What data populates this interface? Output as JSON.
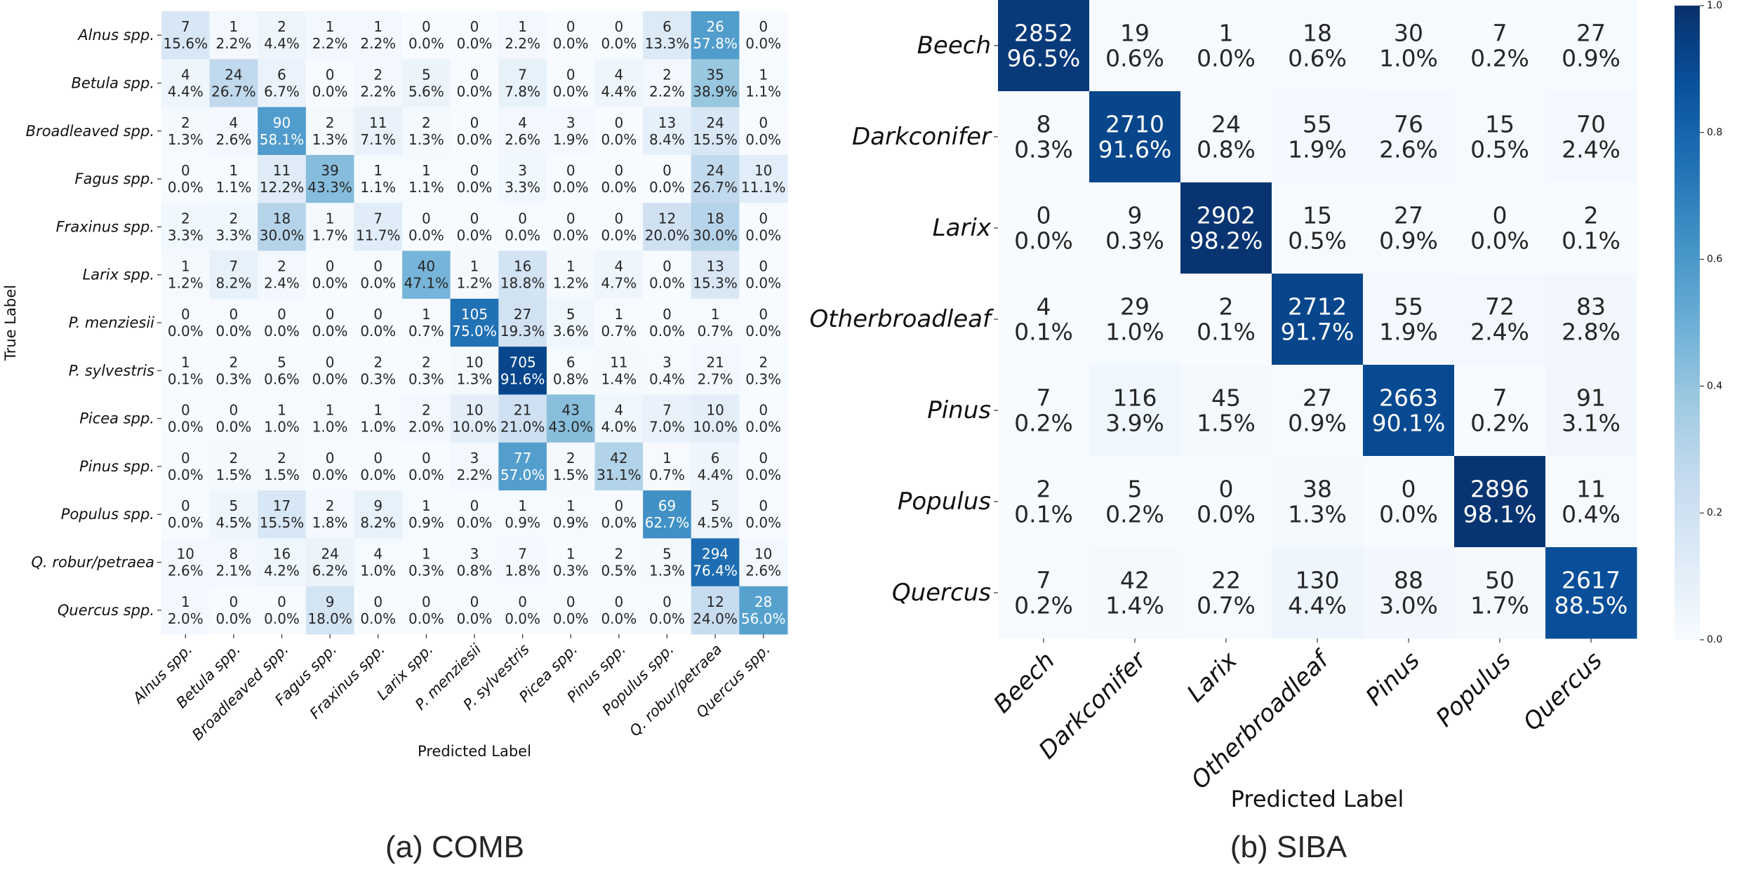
{
  "figure": {
    "caption_a": "(a) COMB",
    "caption_b": "(b) SIBA"
  },
  "colors": {
    "scale": [
      "#f7fbff",
      "#deebf7",
      "#c6dbef",
      "#9ecae1",
      "#6baed6",
      "#4292c6",
      "#2171b5",
      "#08519c",
      "#08306b"
    ],
    "text_dark": "#262626",
    "text_light": "#ffffff"
  },
  "chart_data": [
    {
      "type": "heatmap",
      "id": "comb",
      "title": "",
      "xlabel": "Predicted Label",
      "ylabel": "True Label",
      "classes": [
        "Alnus spp.",
        "Betula spp.",
        "Broadleaved spp.",
        "Fagus spp.",
        "Fraxinus spp.",
        "Larix spp.",
        "P. menziesii",
        "P. sylvestris",
        "Picea spp.",
        "Pinus spp.",
        "Populus spp.",
        "Q. robur/petraea",
        "Quercus spp."
      ],
      "counts": [
        [
          7,
          1,
          2,
          1,
          1,
          0,
          0,
          1,
          0,
          0,
          6,
          26,
          0
        ],
        [
          4,
          24,
          6,
          0,
          2,
          5,
          0,
          7,
          0,
          4,
          2,
          35,
          1
        ],
        [
          2,
          4,
          90,
          2,
          11,
          2,
          0,
          4,
          3,
          0,
          13,
          24,
          0
        ],
        [
          0,
          1,
          11,
          39,
          1,
          1,
          0,
          3,
          0,
          0,
          0,
          24,
          10
        ],
        [
          2,
          2,
          18,
          1,
          7,
          0,
          0,
          0,
          0,
          0,
          12,
          18,
          0
        ],
        [
          1,
          7,
          2,
          0,
          0,
          40,
          1,
          16,
          1,
          4,
          0,
          13,
          0
        ],
        [
          0,
          0,
          0,
          0,
          0,
          1,
          105,
          27,
          5,
          1,
          0,
          1,
          0
        ],
        [
          1,
          2,
          5,
          0,
          2,
          2,
          10,
          705,
          6,
          11,
          3,
          21,
          2
        ],
        [
          0,
          0,
          1,
          1,
          1,
          2,
          10,
          21,
          43,
          4,
          7,
          10,
          0
        ],
        [
          0,
          2,
          2,
          0,
          0,
          0,
          3,
          77,
          2,
          42,
          1,
          6,
          0
        ],
        [
          0,
          5,
          17,
          2,
          9,
          1,
          0,
          1,
          1,
          0,
          69,
          5,
          0
        ],
        [
          10,
          8,
          16,
          24,
          4,
          1,
          3,
          7,
          1,
          2,
          5,
          294,
          10
        ],
        [
          1,
          0,
          0,
          9,
          0,
          0,
          0,
          0,
          0,
          0,
          0,
          12,
          28
        ]
      ],
      "percents": [
        [
          "15.6%",
          "2.2%",
          "4.4%",
          "2.2%",
          "2.2%",
          "0.0%",
          "0.0%",
          "2.2%",
          "0.0%",
          "0.0%",
          "13.3%",
          "57.8%",
          "0.0%"
        ],
        [
          "4.4%",
          "26.7%",
          "6.7%",
          "0.0%",
          "2.2%",
          "5.6%",
          "0.0%",
          "7.8%",
          "0.0%",
          "4.4%",
          "2.2%",
          "38.9%",
          "1.1%"
        ],
        [
          "1.3%",
          "2.6%",
          "58.1%",
          "1.3%",
          "7.1%",
          "1.3%",
          "0.0%",
          "2.6%",
          "1.9%",
          "0.0%",
          "8.4%",
          "15.5%",
          "0.0%"
        ],
        [
          "0.0%",
          "1.1%",
          "12.2%",
          "43.3%",
          "1.1%",
          "1.1%",
          "0.0%",
          "3.3%",
          "0.0%",
          "0.0%",
          "0.0%",
          "26.7%",
          "11.1%"
        ],
        [
          "3.3%",
          "3.3%",
          "30.0%",
          "1.7%",
          "11.7%",
          "0.0%",
          "0.0%",
          "0.0%",
          "0.0%",
          "0.0%",
          "20.0%",
          "30.0%",
          "0.0%"
        ],
        [
          "1.2%",
          "8.2%",
          "2.4%",
          "0.0%",
          "0.0%",
          "47.1%",
          "1.2%",
          "18.8%",
          "1.2%",
          "4.7%",
          "0.0%",
          "15.3%",
          "0.0%"
        ],
        [
          "0.0%",
          "0.0%",
          "0.0%",
          "0.0%",
          "0.0%",
          "0.7%",
          "75.0%",
          "19.3%",
          "3.6%",
          "0.7%",
          "0.0%",
          "0.7%",
          "0.0%"
        ],
        [
          "0.1%",
          "0.3%",
          "0.6%",
          "0.0%",
          "0.3%",
          "0.3%",
          "1.3%",
          "91.6%",
          "0.8%",
          "1.4%",
          "0.4%",
          "2.7%",
          "0.3%"
        ],
        [
          "0.0%",
          "0.0%",
          "1.0%",
          "1.0%",
          "1.0%",
          "2.0%",
          "10.0%",
          "21.0%",
          "43.0%",
          "4.0%",
          "7.0%",
          "10.0%",
          "0.0%"
        ],
        [
          "0.0%",
          "1.5%",
          "1.5%",
          "0.0%",
          "0.0%",
          "0.0%",
          "2.2%",
          "57.0%",
          "1.5%",
          "31.1%",
          "0.7%",
          "4.4%",
          "0.0%"
        ],
        [
          "0.0%",
          "4.5%",
          "15.5%",
          "1.8%",
          "8.2%",
          "0.9%",
          "0.0%",
          "0.9%",
          "0.9%",
          "0.0%",
          "62.7%",
          "4.5%",
          "0.0%"
        ],
        [
          "2.6%",
          "2.1%",
          "4.2%",
          "6.2%",
          "1.0%",
          "0.3%",
          "0.8%",
          "1.8%",
          "0.3%",
          "0.5%",
          "1.3%",
          "76.4%",
          "2.6%"
        ],
        [
          "2.0%",
          "0.0%",
          "0.0%",
          "18.0%",
          "0.0%",
          "0.0%",
          "0.0%",
          "0.0%",
          "0.0%",
          "0.0%",
          "0.0%",
          "24.0%",
          "56.0%"
        ]
      ]
    },
    {
      "type": "heatmap",
      "id": "siba",
      "title": "",
      "xlabel": "Predicted Label",
      "ylabel": "",
      "classes": [
        "Beech",
        "Darkconifer",
        "Larix",
        "Otherbroadleaf",
        "Pinus",
        "Populus",
        "Quercus"
      ],
      "counts": [
        [
          2852,
          19,
          1,
          18,
          30,
          7,
          27
        ],
        [
          8,
          2710,
          24,
          55,
          76,
          15,
          70
        ],
        [
          0,
          9,
          2902,
          15,
          27,
          0,
          2
        ],
        [
          4,
          29,
          2,
          2712,
          55,
          72,
          83
        ],
        [
          7,
          116,
          45,
          27,
          2663,
          7,
          91
        ],
        [
          2,
          5,
          0,
          38,
          0,
          2896,
          11
        ],
        [
          7,
          42,
          22,
          130,
          88,
          50,
          2617
        ]
      ],
      "percents": [
        [
          "96.5%",
          "0.6%",
          "0.0%",
          "0.6%",
          "1.0%",
          "0.2%",
          "0.9%"
        ],
        [
          "0.3%",
          "91.6%",
          "0.8%",
          "1.9%",
          "2.6%",
          "0.5%",
          "2.4%"
        ],
        [
          "0.0%",
          "0.3%",
          "98.2%",
          "0.5%",
          "0.9%",
          "0.0%",
          "0.1%"
        ],
        [
          "0.1%",
          "1.0%",
          "0.1%",
          "91.7%",
          "1.9%",
          "2.4%",
          "2.8%"
        ],
        [
          "0.2%",
          "3.9%",
          "1.5%",
          "0.9%",
          "90.1%",
          "0.2%",
          "3.1%"
        ],
        [
          "0.1%",
          "0.2%",
          "0.0%",
          "1.3%",
          "0.0%",
          "98.1%",
          "0.4%"
        ],
        [
          "0.2%",
          "1.4%",
          "0.7%",
          "4.4%",
          "3.0%",
          "1.7%",
          "88.5%"
        ]
      ],
      "colorbar": {
        "range": [
          0.0,
          1.0
        ],
        "ticks": [
          "0.0",
          "0.2",
          "0.4",
          "0.6",
          "0.8",
          "1.0"
        ]
      }
    }
  ]
}
